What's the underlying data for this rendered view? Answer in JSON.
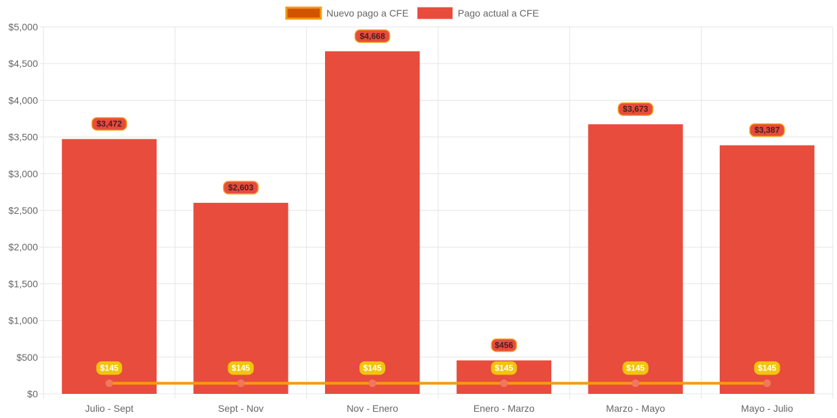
{
  "chart_data": {
    "type": "bar",
    "categories": [
      "Julio - Sept",
      "Sept - Nov",
      "Nov - Enero",
      "Enero - Marzo",
      "Marzo - Mayo",
      "Mayo - Julio"
    ],
    "series": [
      {
        "name": "Pago actual a CFE",
        "type": "bar",
        "values": [
          3472,
          2603,
          4668,
          456,
          3673,
          3387
        ],
        "labels": [
          "$3,472",
          "$2,603",
          "$4,668",
          "$456",
          "$3,673",
          "$3,387"
        ],
        "color": "#e74c3c"
      },
      {
        "name": "Nuevo pago a CFE",
        "type": "line",
        "values": [
          145,
          145,
          145,
          145,
          145,
          145
        ],
        "labels": [
          "$145",
          "$145",
          "$145",
          "$145",
          "$145",
          "$145"
        ],
        "color": "#f39c12"
      }
    ],
    "y_ticks": [
      "$0",
      "$500",
      "$1,000",
      "$1,500",
      "$2,000",
      "$2,500",
      "$3,000",
      "$3,500",
      "$4,000",
      "$4,500",
      "$5,000"
    ],
    "ylim": [
      0,
      5000
    ],
    "y_step": 500,
    "grid": true,
    "legend_position": "top"
  },
  "colors": {
    "bar": "#e74c3c",
    "line": "#f39c12",
    "line_point": "#f1775f",
    "legend_line_fill": "#d35400",
    "bar_label_bg": "#e74c3c",
    "bar_label_border": "#f39c12",
    "bar_label_text": "#4a1e1e",
    "line_label_bg": "#f1c40f",
    "line_label_text": "#ffffff",
    "grid": "#e5e5e5",
    "axis_text": "#666666"
  }
}
